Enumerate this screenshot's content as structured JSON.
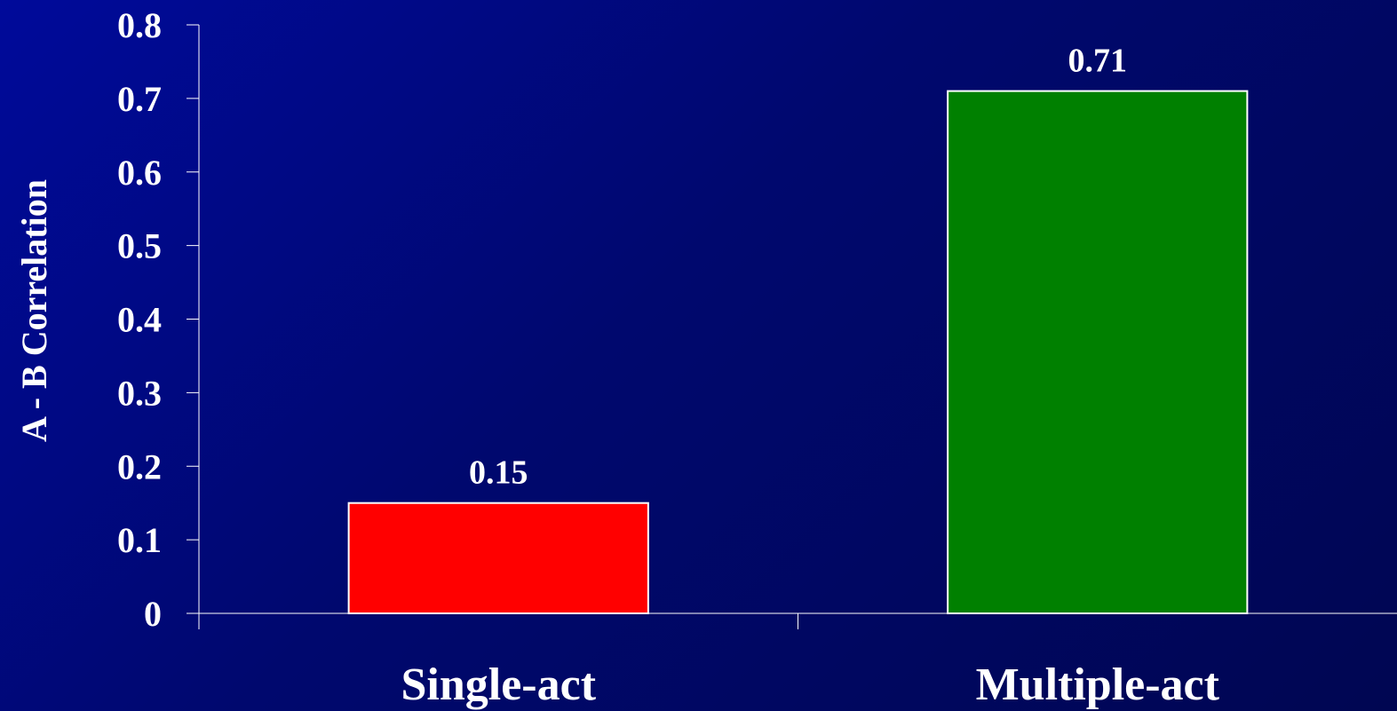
{
  "chart_data": {
    "type": "bar",
    "title": "",
    "xlabel": "",
    "ylabel": "A - B Correlation",
    "categories": [
      "Single-act",
      "Multiple-act"
    ],
    "values": [
      0.15,
      0.71
    ],
    "data_labels": [
      "0.15",
      "0.71"
    ],
    "bar_colors": [
      "#ff0000",
      "#008000"
    ],
    "bar_border_color": "#ffffff",
    "ylim": [
      0,
      0.8
    ],
    "yticks": [
      0,
      0.1,
      0.2,
      0.3,
      0.4,
      0.5,
      0.6,
      0.7,
      0.8
    ],
    "ytick_labels": [
      "0",
      "0.1",
      "0.2",
      "0.3",
      "0.4",
      "0.5",
      "0.6",
      "0.7",
      "0.8"
    ],
    "grid": false,
    "legend": "none",
    "background_color": "#00087a",
    "axis_color": "#ffffff"
  }
}
